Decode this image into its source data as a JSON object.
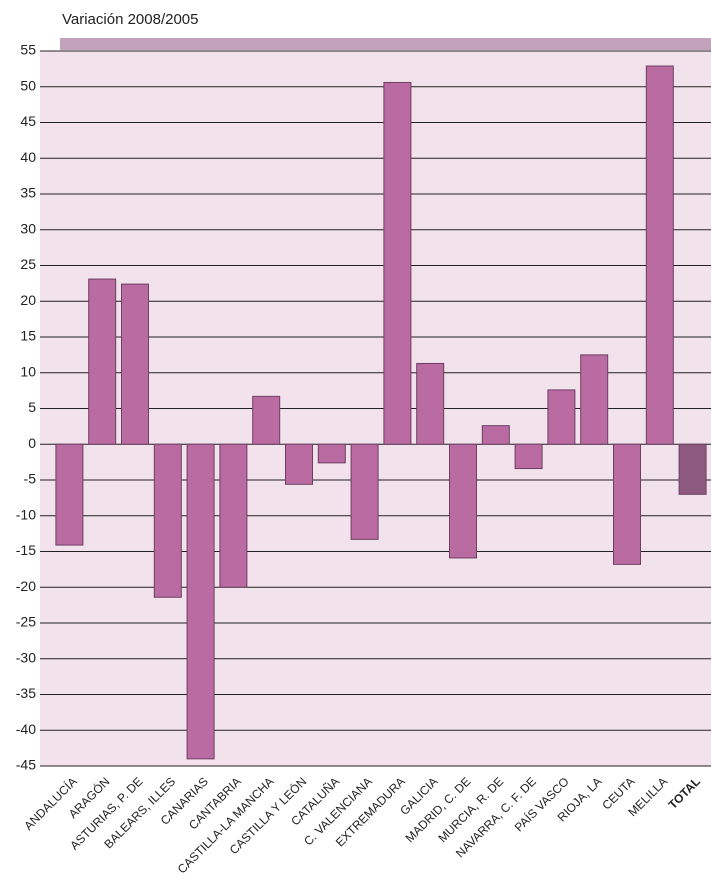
{
  "chart_data": {
    "type": "bar",
    "title": "Variación 2008/2005",
    "categories": [
      "ANDALUCÍA",
      "ARAGÓN",
      "ASTURIAS, P. DE",
      "BALEARS, ILLES",
      "CANARIAS",
      "CANTABRIA",
      "CASTILLA-LA MANCHA",
      "CASTILLA Y LEÓN",
      "CATALUÑA",
      "C. VALENCIANA",
      "EXTREMADURA",
      "GALICIA",
      "MADRID, C. DE",
      "MURCIA, R. DE",
      "NAVARRA, C. F. DE",
      "PAÍS VASCO",
      "RIOJA, LA",
      "CEUTA",
      "MELILLA",
      "TOTAL"
    ],
    "values": [
      -14.1,
      23.1,
      22.4,
      -21.4,
      -44,
      -20,
      6.7,
      -5.6,
      -2.6,
      -13.3,
      50.6,
      11.3,
      -15.9,
      2.6,
      -3.4,
      7.6,
      12.5,
      -16.8,
      52.9,
      -7.0
    ],
    "colors": [
      "#b96ba2",
      "#b96ba2",
      "#b96ba2",
      "#b96ba2",
      "#b96ba2",
      "#b96ba2",
      "#b96ba2",
      "#b96ba2",
      "#b96ba2",
      "#b96ba2",
      "#b96ba2",
      "#b96ba2",
      "#b96ba2",
      "#b96ba2",
      "#b96ba2",
      "#b96ba2",
      "#b96ba2",
      "#b96ba2",
      "#b96ba2",
      "#8e5a80"
    ],
    "ylim": [
      -45,
      55
    ],
    "yticks": [
      -45,
      -40,
      -35,
      -30,
      -25,
      -20,
      -15,
      -10,
      -5,
      0,
      5,
      10,
      15,
      20,
      25,
      30,
      35,
      40,
      45,
      50,
      55
    ],
    "grid": true
  }
}
